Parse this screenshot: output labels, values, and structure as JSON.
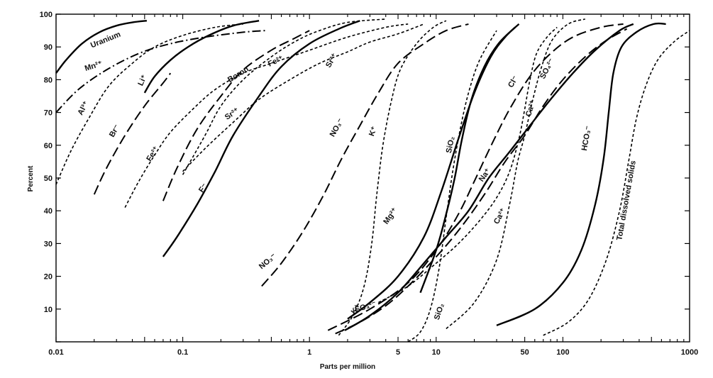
{
  "chart_data": {
    "type": "line",
    "title": "",
    "xlabel": "Parts per million",
    "ylabel": "Percent",
    "x_scale": "log",
    "xlim": [
      0.01,
      1000
    ],
    "ylim": [
      0,
      100
    ],
    "grid": false,
    "x_ticks": [
      {
        "value": 0.01,
        "label": "0.01"
      },
      {
        "value": 0.1,
        "label": "0.1"
      },
      {
        "value": 1,
        "label": "1"
      },
      {
        "value": 5,
        "label": "5"
      },
      {
        "value": 10,
        "label": "10"
      },
      {
        "value": 50,
        "label": "50"
      },
      {
        "value": 100,
        "label": "100"
      },
      {
        "value": 1000,
        "label": "1000"
      }
    ],
    "y_ticks": [
      10,
      20,
      30,
      40,
      50,
      60,
      70,
      80,
      90,
      100
    ],
    "series": [
      {
        "name": "Uranium",
        "style": "solid",
        "label": {
          "text": "Uranium",
          "x": 0.025,
          "y": 91.5,
          "rotate": -22
        },
        "points": [
          [
            0.01,
            82
          ],
          [
            0.012,
            86
          ],
          [
            0.016,
            91
          ],
          [
            0.022,
            94.5
          ],
          [
            0.03,
            96.5
          ],
          [
            0.04,
            97.5
          ],
          [
            0.052,
            98
          ]
        ]
      },
      {
        "name": "Mn2+",
        "style": "dashdot",
        "label": {
          "text": "Mn²⁺",
          "x": 0.02,
          "y": 83.5,
          "rotate": -18
        },
        "points": [
          [
            0.01,
            70
          ],
          [
            0.015,
            77
          ],
          [
            0.025,
            83
          ],
          [
            0.045,
            88
          ],
          [
            0.08,
            91
          ],
          [
            0.15,
            93
          ],
          [
            0.3,
            94.5
          ],
          [
            0.45,
            95
          ]
        ]
      },
      {
        "name": "Li+",
        "style": "solid",
        "label": {
          "text": "Li⁺",
          "x": 0.05,
          "y": 79.5,
          "rotate": -65
        },
        "points": [
          [
            0.05,
            76
          ],
          [
            0.06,
            81
          ],
          [
            0.08,
            86
          ],
          [
            0.11,
            90
          ],
          [
            0.16,
            93.5
          ],
          [
            0.25,
            96.5
          ],
          [
            0.4,
            98
          ]
        ]
      },
      {
        "name": "Al3+",
        "style": "dash",
        "label": {
          "text": "Al³⁺",
          "x": 0.017,
          "y": 71,
          "rotate": -62
        },
        "points": [
          [
            0.01,
            48
          ],
          [
            0.013,
            58
          ],
          [
            0.018,
            68
          ],
          [
            0.026,
            78
          ],
          [
            0.04,
            85
          ],
          [
            0.06,
            90
          ],
          [
            0.1,
            93.5
          ],
          [
            0.18,
            96
          ],
          [
            0.3,
            97
          ]
        ]
      },
      {
        "name": "Br-",
        "style": "longdash",
        "label": {
          "text": "Br⁻",
          "x": 0.03,
          "y": 64,
          "rotate": -60
        },
        "points": [
          [
            0.02,
            45
          ],
          [
            0.025,
            53
          ],
          [
            0.035,
            63
          ],
          [
            0.05,
            72
          ],
          [
            0.07,
            79
          ],
          [
            0.08,
            82
          ]
        ]
      },
      {
        "name": "Boron",
        "style": "longdash",
        "label": {
          "text": "Boron",
          "x": 0.28,
          "y": 81,
          "rotate": -32
        },
        "points": [
          [
            0.07,
            43
          ],
          [
            0.09,
            53
          ],
          [
            0.13,
            65
          ],
          [
            0.2,
            75
          ],
          [
            0.3,
            83
          ],
          [
            0.5,
            89
          ],
          [
            0.75,
            92.5
          ],
          [
            1.0,
            95
          ]
        ]
      },
      {
        "name": "Fe2+ (upper)",
        "style": "dash",
        "label": {
          "text": "Fe²⁺",
          "x": 0.55,
          "y": 85,
          "rotate": -25
        },
        "points": [
          [
            0.1,
            51
          ],
          [
            0.15,
            63
          ],
          [
            0.2,
            72
          ],
          [
            0.3,
            80
          ],
          [
            0.5,
            87
          ],
          [
            0.8,
            92
          ],
          [
            1.2,
            95
          ],
          [
            2,
            97.5
          ],
          [
            4,
            98.5
          ]
        ]
      },
      {
        "name": "Fe2+ (lower)",
        "style": "dash",
        "label": {
          "text": "Fe²⁺",
          "x": 0.06,
          "y": 57,
          "rotate": -58
        },
        "points": [
          [
            0.035,
            41
          ],
          [
            0.045,
            49
          ],
          [
            0.06,
            57
          ],
          [
            0.08,
            64
          ],
          [
            0.12,
            71
          ],
          [
            0.18,
            77
          ],
          [
            0.3,
            82
          ],
          [
            0.5,
            85
          ],
          [
            1,
            89
          ],
          [
            2,
            93
          ],
          [
            4,
            96
          ],
          [
            6,
            97
          ]
        ]
      },
      {
        "name": "Sr2+",
        "style": "dash",
        "label": {
          "text": "Sr²⁺",
          "x": 0.25,
          "y": 69,
          "rotate": -35
        },
        "points": [
          [
            0.1,
            52
          ],
          [
            0.15,
            59
          ],
          [
            0.25,
            67
          ],
          [
            0.4,
            74
          ],
          [
            0.7,
            80
          ],
          [
            1.2,
            85
          ],
          [
            2,
            88.5
          ],
          [
            3,
            91.5
          ],
          [
            5,
            94
          ],
          [
            8,
            97
          ]
        ]
      },
      {
        "name": "Sr2+ (label)",
        "style": "none",
        "label": {
          "text": "Sr²⁺",
          "x": 1.55,
          "y": 85.5,
          "rotate": -60
        },
        "points": []
      },
      {
        "name": "F-",
        "style": "solid",
        "label": {
          "text": "F⁻",
          "x": 0.15,
          "y": 46.5,
          "rotate": -55
        },
        "points": [
          [
            0.07,
            26
          ],
          [
            0.09,
            32
          ],
          [
            0.13,
            42
          ],
          [
            0.18,
            52
          ],
          [
            0.25,
            63
          ],
          [
            0.4,
            75
          ],
          [
            0.6,
            84
          ],
          [
            1.0,
            91
          ],
          [
            1.7,
            95.5
          ],
          [
            2.5,
            98
          ]
        ]
      },
      {
        "name": "NO3- (upper)",
        "style": "longdash",
        "label": {
          "text": "NO₃⁻",
          "x": 1.7,
          "y": 65,
          "rotate": -60
        },
        "points": [
          [
            0.42,
            17
          ],
          [
            0.6,
            24
          ],
          [
            0.9,
            34
          ],
          [
            1.3,
            45
          ],
          [
            1.8,
            56
          ],
          [
            2.5,
            66
          ],
          [
            3.5,
            76
          ],
          [
            5,
            85
          ],
          [
            8,
            91
          ],
          [
            12,
            95
          ],
          [
            18,
            97
          ]
        ]
      },
      {
        "name": "NO3- (lower)",
        "style": "none",
        "label": {
          "text": "NO₃⁻",
          "x": 0.48,
          "y": 24,
          "rotate": -40
        },
        "points": []
      },
      {
        "name": "K+",
        "style": "dash",
        "label": {
          "text": "K⁺",
          "x": 3.3,
          "y": 64,
          "rotate": -70
        },
        "points": [
          [
            1.7,
            2
          ],
          [
            2.2,
            8
          ],
          [
            2.7,
            17
          ],
          [
            3.1,
            30
          ],
          [
            3.4,
            45
          ],
          [
            3.8,
            60
          ],
          [
            4.4,
            73
          ],
          [
            5.2,
            83
          ],
          [
            7,
            91
          ],
          [
            9.5,
            96
          ],
          [
            12,
            98
          ]
        ]
      },
      {
        "name": "K+ (label)",
        "style": "none",
        "label": {
          "text": "K⁺",
          "x": 2.4,
          "y": 9.5,
          "rotate": -55
        },
        "points": []
      },
      {
        "name": "Mg2+",
        "style": "solid",
        "label": {
          "text": "Mg²⁺",
          "x": 4.5,
          "y": 38,
          "rotate": -55
        },
        "points": [
          [
            2,
            7
          ],
          [
            3,
            12
          ],
          [
            5,
            20
          ],
          [
            8,
            32
          ],
          [
            11,
            46
          ],
          [
            15,
            62
          ],
          [
            20,
            76
          ],
          [
            27,
            87
          ],
          [
            35,
            93
          ],
          [
            45,
            97
          ]
        ]
      },
      {
        "name": "SiO2",
        "style": "dash",
        "label": {
          "text": "SiO₂",
          "x": 13.5,
          "y": 60,
          "rotate": -78
        },
        "points": [
          [
            6,
            0
          ],
          [
            7.5,
            3
          ],
          [
            9,
            10
          ],
          [
            10.5,
            22
          ],
          [
            12,
            38
          ],
          [
            13.5,
            52
          ],
          [
            15.5,
            65
          ],
          [
            18,
            76
          ],
          [
            22,
            86
          ],
          [
            30,
            95
          ]
        ]
      },
      {
        "name": "SiO2 (solid)",
        "style": "solid",
        "points": [
          [
            7.5,
            15
          ],
          [
            10,
            28
          ],
          [
            12,
            39
          ],
          [
            14,
            50
          ],
          [
            16,
            62
          ],
          [
            19,
            74
          ],
          [
            24,
            84
          ],
          [
            31,
            91
          ],
          [
            42,
            96
          ]
        ]
      },
      {
        "name": "SiO2 (lower label)",
        "style": "none",
        "label": {
          "text": "SiO₂",
          "x": 11,
          "y": 9,
          "rotate": -72
        },
        "points": []
      },
      {
        "name": "SO4 2- (lower)",
        "style": "longdash",
        "label": {
          "text": "SO₄²⁻",
          "x": 2.8,
          "y": 10,
          "rotate": -18
        },
        "points": [
          [
            1.6,
            2.5
          ],
          [
            2.5,
            6
          ],
          [
            4,
            11
          ],
          [
            6,
            17
          ],
          [
            9,
            24
          ],
          [
            13,
            31
          ],
          [
            18,
            38
          ],
          [
            25,
            46
          ],
          [
            35,
            55
          ],
          [
            50,
            63
          ],
          [
            70,
            72
          ],
          [
            100,
            80
          ],
          [
            150,
            87
          ],
          [
            220,
            92
          ],
          [
            320,
            95.5
          ]
        ]
      },
      {
        "name": "Na+",
        "style": "solid",
        "label": {
          "text": "Na⁺",
          "x": 25,
          "y": 50.5,
          "rotate": -55
        },
        "points": [
          [
            1.9,
            3.5
          ],
          [
            3,
            8
          ],
          [
            5,
            15
          ],
          [
            8,
            24
          ],
          [
            12,
            32
          ],
          [
            18,
            40
          ],
          [
            26,
            50
          ],
          [
            38,
            58
          ],
          [
            55,
            66
          ],
          [
            80,
            74
          ],
          [
            120,
            82
          ],
          [
            180,
            89
          ],
          [
            280,
            95
          ],
          [
            360,
            97
          ]
        ]
      },
      {
        "name": "Ca2+ (lower)",
        "style": "dash",
        "label": {
          "text": "Ca²⁺",
          "x": 33,
          "y": 38,
          "rotate": -62
        },
        "points": [
          [
            3.5,
            12
          ],
          [
            6,
            17
          ],
          [
            10,
            24
          ],
          [
            15,
            30
          ],
          [
            22,
            37
          ],
          [
            30,
            44
          ],
          [
            38,
            52
          ],
          [
            45,
            62
          ],
          [
            50,
            71
          ],
          [
            55,
            80
          ],
          [
            62,
            88
          ],
          [
            75,
            93
          ],
          [
            90,
            96
          ]
        ]
      },
      {
        "name": "Ca2+ (upper)",
        "style": "none",
        "label": {
          "text": "Ca²⁺",
          "x": 58,
          "y": 71,
          "rotate": -72
        },
        "points": []
      },
      {
        "name": "Cl-",
        "style": "longdash",
        "label": {
          "text": "Cl⁻",
          "x": 42,
          "y": 79,
          "rotate": -60
        },
        "points": [
          [
            1.4,
            3.5
          ],
          [
            3,
            10
          ],
          [
            6,
            18
          ],
          [
            10,
            28
          ],
          [
            15,
            39
          ],
          [
            20,
            49
          ],
          [
            28,
            61
          ],
          [
            38,
            71
          ],
          [
            55,
            81
          ],
          [
            80,
            88
          ],
          [
            120,
            93
          ],
          [
            200,
            96
          ],
          [
            300,
            97
          ]
        ]
      },
      {
        "name": "SO4 2- (upper)",
        "style": "dash",
        "label": {
          "text": "SO₄²⁻",
          "x": 78,
          "y": 83,
          "rotate": -62
        },
        "points": [
          [
            12,
            4
          ],
          [
            20,
            12
          ],
          [
            30,
            25
          ],
          [
            38,
            42
          ],
          [
            44,
            55
          ],
          [
            50,
            63
          ],
          [
            58,
            74
          ],
          [
            68,
            84
          ],
          [
            82,
            92
          ],
          [
            110,
            97
          ],
          [
            150,
            98.5
          ]
        ]
      },
      {
        "name": "HCO3-",
        "style": "solid",
        "label": {
          "text": "HCO₃⁻",
          "x": 160,
          "y": 62,
          "rotate": -80
        },
        "points": [
          [
            30,
            5
          ],
          [
            60,
            10
          ],
          [
            100,
            18
          ],
          [
            140,
            28
          ],
          [
            180,
            42
          ],
          [
            210,
            56
          ],
          [
            230,
            70
          ],
          [
            250,
            82
          ],
          [
            290,
            90
          ],
          [
            380,
            94.5
          ],
          [
            520,
            97
          ],
          [
            650,
            97
          ]
        ]
      },
      {
        "name": "Total dissolved solids",
        "style": "dash",
        "label": {
          "text": "Total dissolved solids",
          "x": 330,
          "y": 43,
          "rotate": -80
        },
        "points": [
          [
            70,
            2
          ],
          [
            110,
            6
          ],
          [
            160,
            13
          ],
          [
            220,
            25
          ],
          [
            280,
            40
          ],
          [
            330,
            55
          ],
          [
            380,
            68
          ],
          [
            450,
            78
          ],
          [
            560,
            86
          ],
          [
            750,
            91.5
          ],
          [
            1000,
            95
          ]
        ]
      }
    ]
  }
}
